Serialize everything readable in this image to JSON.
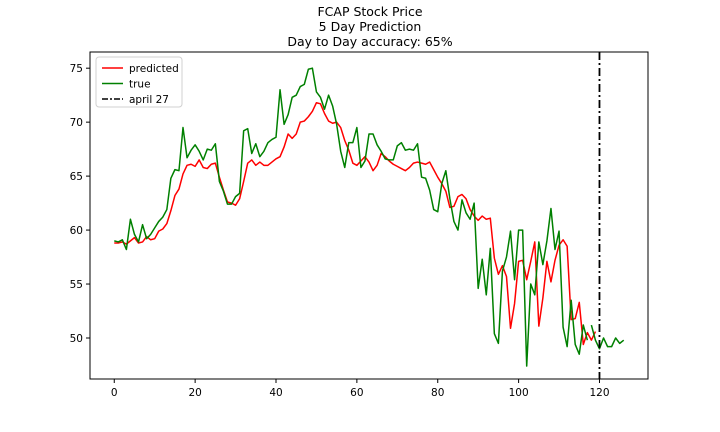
{
  "chart_data": {
    "type": "line",
    "title": [
      "FCAP Stock Price",
      "5 Day Prediction",
      "Day to Day accuracy: 65%"
    ],
    "xlim": [
      -6,
      132
    ],
    "ylim": [
      46.2,
      76.5
    ],
    "x_ticks": [
      0,
      20,
      40,
      60,
      80,
      100,
      120
    ],
    "y_ticks": [
      50,
      55,
      60,
      65,
      70,
      75
    ],
    "grid": false,
    "legend_position": "top-left",
    "vline": {
      "x": 120,
      "label": "april 27",
      "color": "#000000",
      "style": "dash-dot"
    },
    "series": [
      {
        "name": "predicted",
        "color": "#ff0000",
        "x_start": 0,
        "values": [
          58.8,
          58.8,
          58.9,
          58.7,
          59.0,
          59.3,
          58.8,
          58.9,
          59.4,
          59.1,
          59.2,
          59.9,
          60.1,
          60.6,
          61.8,
          63.2,
          63.8,
          65.2,
          66.0,
          66.1,
          65.9,
          66.5,
          65.8,
          65.7,
          66.1,
          66.2,
          64.9,
          63.7,
          62.6,
          62.5,
          62.3,
          62.9,
          64.5,
          66.2,
          66.5,
          66.0,
          66.3,
          66.0,
          66.0,
          66.3,
          66.6,
          66.8,
          67.7,
          68.9,
          68.5,
          68.9,
          70.0,
          70.1,
          70.5,
          71.0,
          71.8,
          71.7,
          70.8,
          70.1,
          69.9,
          70.0,
          69.5,
          68.3,
          67.4,
          66.2,
          66.0,
          66.4,
          66.8,
          66.3,
          65.5,
          66.0,
          67.1,
          66.8,
          66.4,
          66.1,
          65.9,
          65.7,
          65.5,
          65.8,
          66.2,
          66.3,
          66.2,
          66.1,
          66.3,
          65.6,
          64.9,
          64.3,
          63.6,
          62.1,
          62.2,
          63.1,
          63.3,
          62.9,
          61.9,
          61.3,
          60.9,
          61.3,
          61.0,
          61.1,
          57.4,
          55.9,
          56.7,
          55.7,
          50.9,
          53.2,
          57.1,
          57.2,
          55.4,
          57.1,
          58.9,
          51.1,
          53.7,
          57.1,
          55.2,
          57.2,
          58.6,
          59.1,
          58.5,
          51.7,
          51.8,
          53.3,
          49.4,
          50.5,
          49.8,
          50.6
        ]
      },
      {
        "name": "true",
        "color": "#008000",
        "x_start": 0,
        "values": [
          59.0,
          58.9,
          59.1,
          58.2,
          61.0,
          59.6,
          58.9,
          60.5,
          59.2,
          59.6,
          60.2,
          60.8,
          61.2,
          61.9,
          64.8,
          65.6,
          65.5,
          69.5,
          66.7,
          67.4,
          67.9,
          67.3,
          66.5,
          67.5,
          67.4,
          68.0,
          64.5,
          63.6,
          62.4,
          62.4,
          63.1,
          63.4,
          69.2,
          69.4,
          67.1,
          68.0,
          66.8,
          67.3,
          68.1,
          68.4,
          68.6,
          73.0,
          69.8,
          70.7,
          72.3,
          72.5,
          73.3,
          73.5,
          74.9,
          75.0,
          72.8,
          72.3,
          71.2,
          72.5,
          71.5,
          69.8,
          67.3,
          65.8,
          68.1,
          68.1,
          69.5,
          65.8,
          66.4,
          68.9,
          68.9,
          67.9,
          67.3,
          66.6,
          66.5,
          66.5,
          67.8,
          68.1,
          67.4,
          67.5,
          67.4,
          68.0,
          64.9,
          64.8,
          63.7,
          61.9,
          61.7,
          64.3,
          65.5,
          62.9,
          60.8,
          60.0,
          62.8,
          61.6,
          61.0,
          62.5,
          54.6,
          57.3,
          54.0,
          58.3,
          50.4,
          49.5,
          56.2,
          57.5,
          59.9,
          55.4,
          60.0,
          60.0,
          47.4,
          55.0,
          54.0,
          58.9,
          56.8,
          59.0,
          62.0,
          58.2,
          59.9,
          51.0,
          49.2,
          53.5,
          49.4,
          48.5,
          51.2,
          49.8
        ]
      },
      {
        "name": "",
        "color": "#008000",
        "x_start": 118,
        "values": [
          51.2,
          49.8,
          49.0,
          50.0,
          49.2,
          49.2,
          50.0,
          49.5,
          49.8
        ]
      }
    ]
  }
}
